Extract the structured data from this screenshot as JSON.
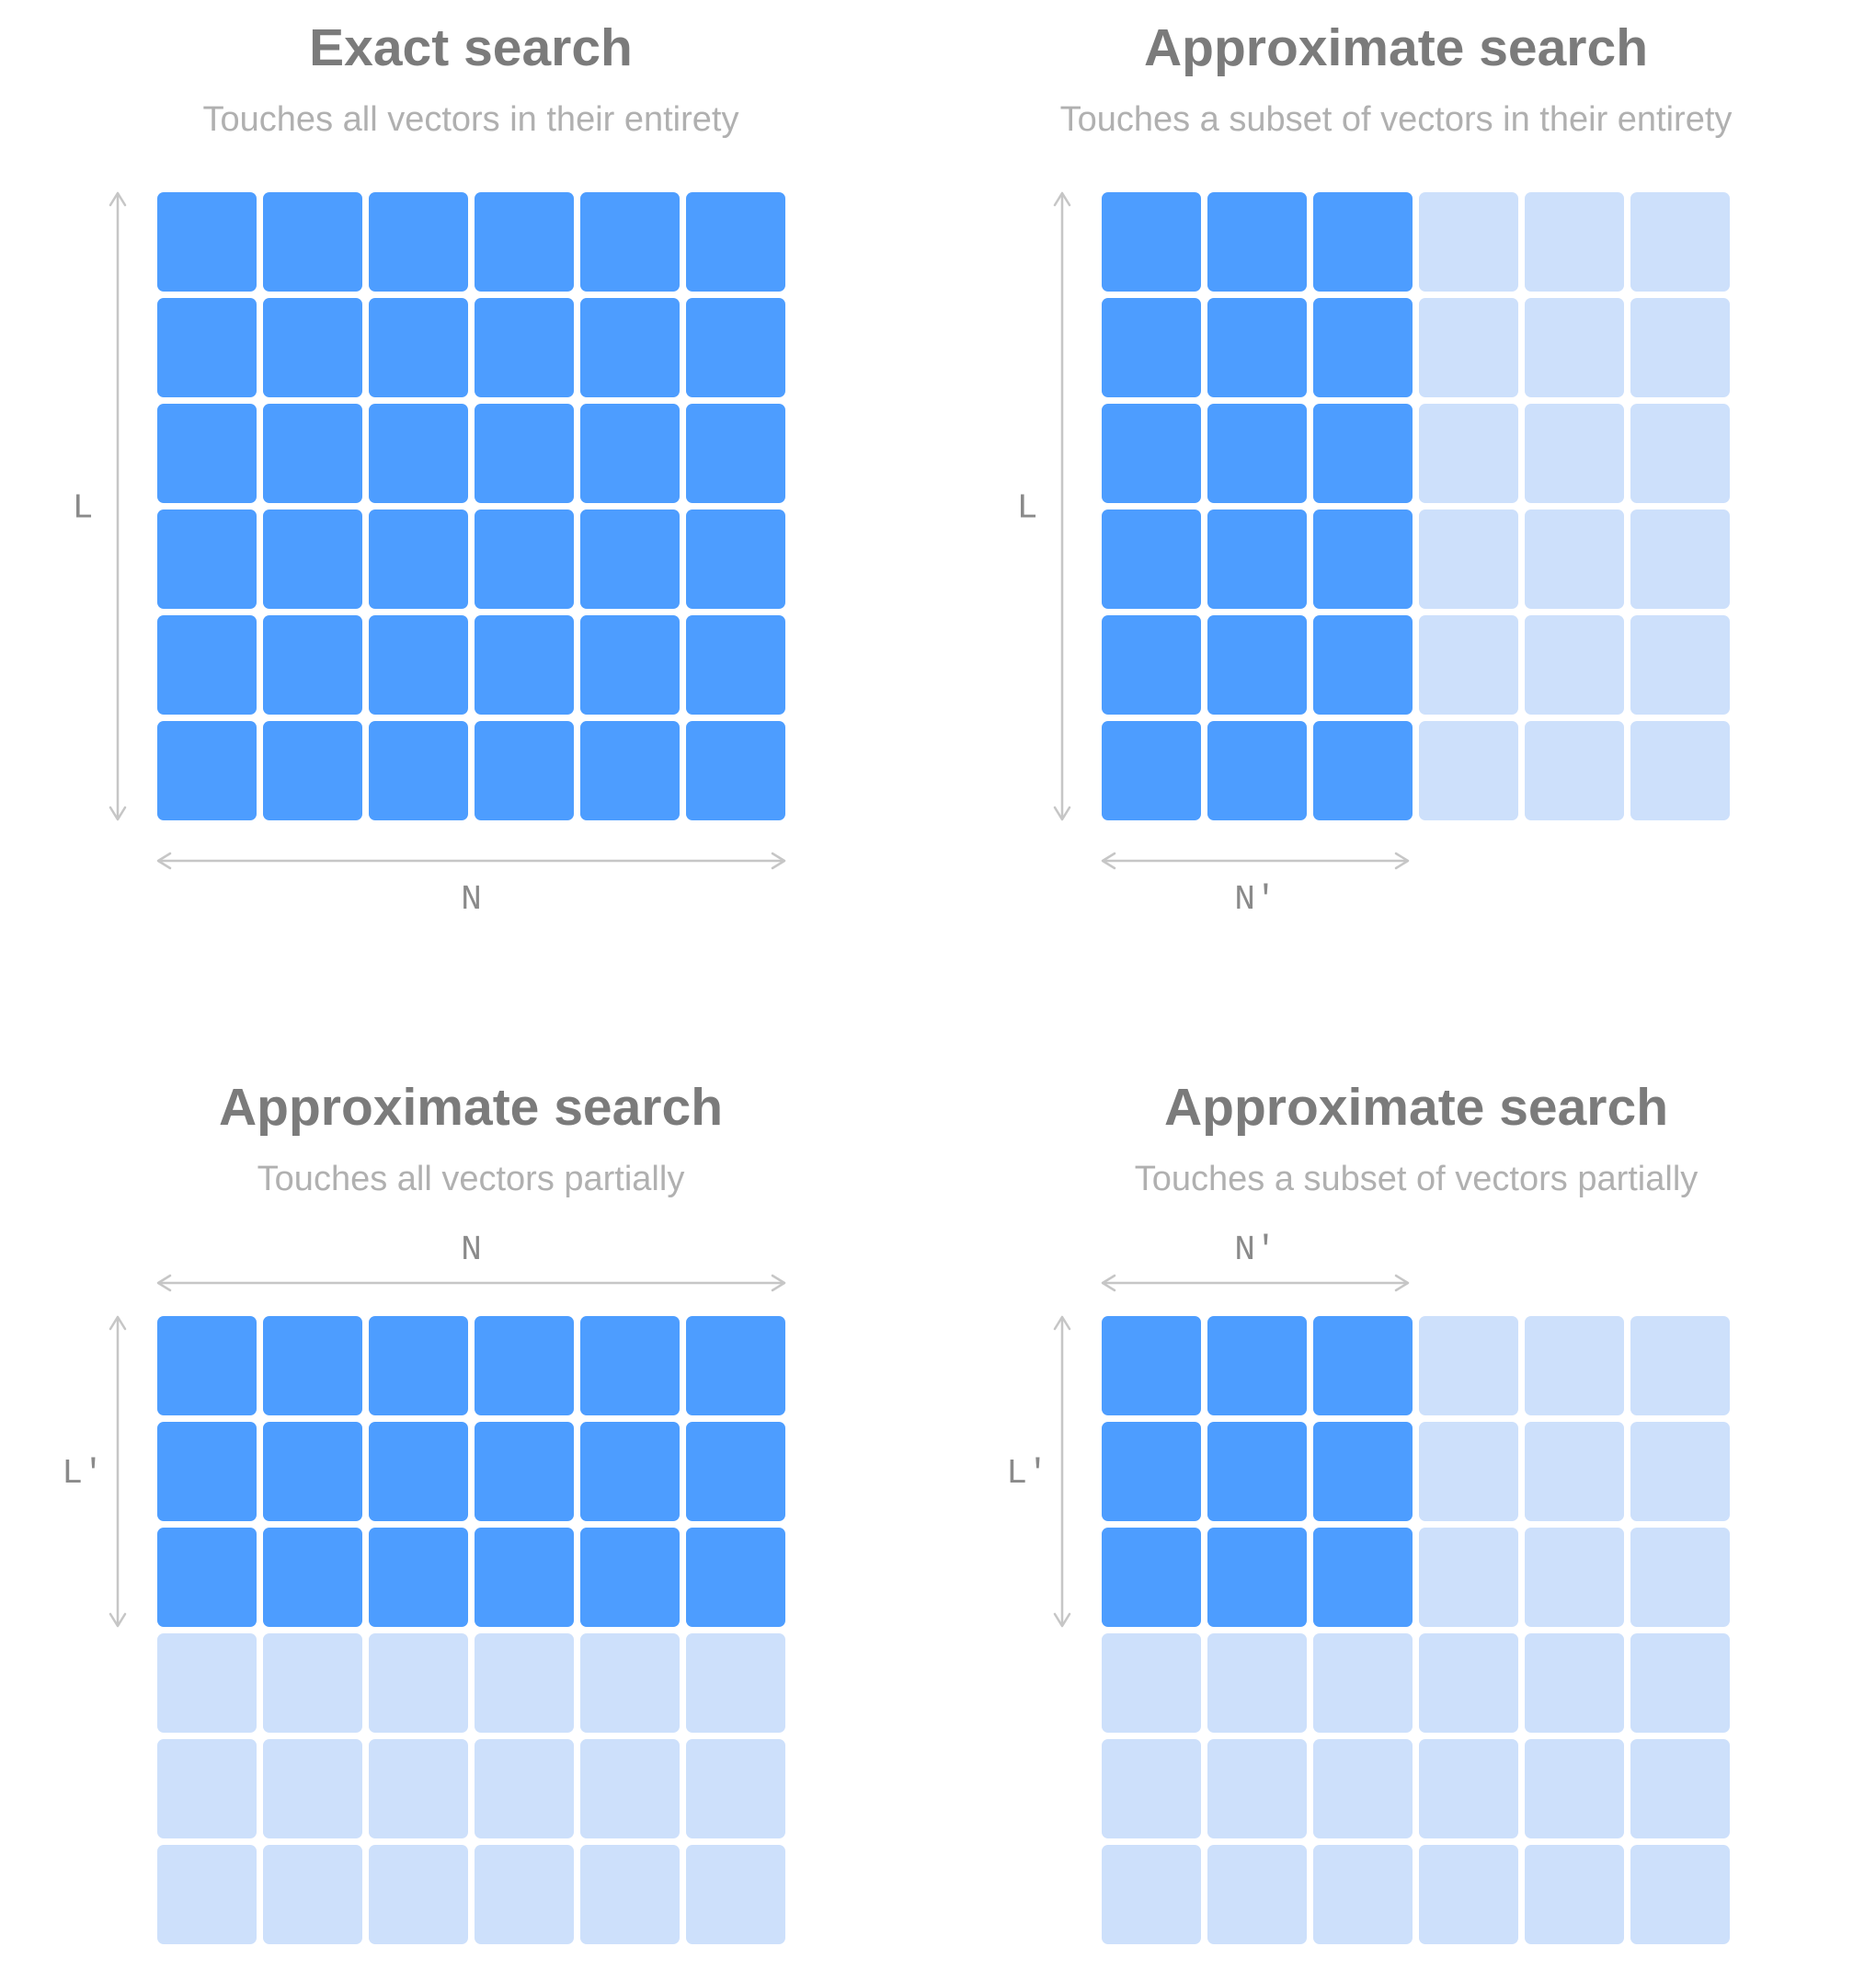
{
  "colors": {
    "touched": "#4d9dff",
    "untouched": "#cde0fb",
    "arrow": "#c6c6c6"
  },
  "panels": [
    {
      "id": "exact",
      "title": "Exact search",
      "subtitle": "Touches all vectors in their entirety",
      "grid": {
        "rows": 6,
        "cols": 6,
        "touched_rows": 6,
        "touched_cols": 6
      },
      "vertical_label": "L",
      "horizontal_label": "N",
      "horizontal_position": "below"
    },
    {
      "id": "approx-subset-entire",
      "title": "Approximate search",
      "subtitle": "Touches a subset of vectors in their entirety",
      "grid": {
        "rows": 6,
        "cols": 6,
        "touched_rows": 6,
        "touched_cols": 3
      },
      "vertical_label": "L",
      "horizontal_label": "N′",
      "horizontal_position": "below"
    },
    {
      "id": "approx-all-partial",
      "title": "Approximate search",
      "subtitle": "Touches all vectors partially",
      "grid": {
        "rows": 6,
        "cols": 6,
        "touched_rows": 3,
        "touched_cols": 6
      },
      "vertical_label": "L′",
      "horizontal_label": "N",
      "horizontal_position": "above"
    },
    {
      "id": "approx-subset-partial",
      "title": "Approximate search",
      "subtitle": "Touches a subset of vectors partially",
      "grid": {
        "rows": 6,
        "cols": 6,
        "touched_rows": 3,
        "touched_cols": 3
      },
      "vertical_label": "L′",
      "horizontal_label": "N′",
      "horizontal_position": "above"
    }
  ]
}
